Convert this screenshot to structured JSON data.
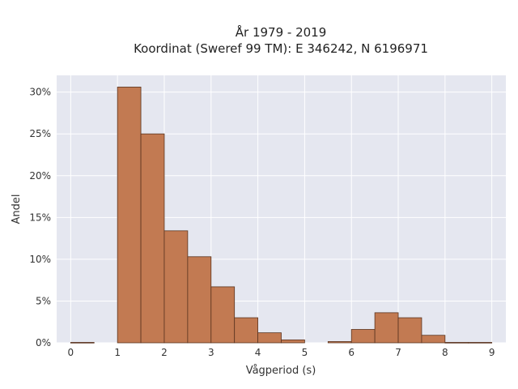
{
  "chart_data": {
    "type": "bar",
    "title": "År 1979 - 2019",
    "subtitle": "Koordinat (Sweref 99 TM): E 346242, N 6196971",
    "xlabel": "Vågperiod (s)",
    "ylabel": "Andel",
    "xlim": [
      -0.3,
      9.3
    ],
    "ylim": [
      0,
      32
    ],
    "x_ticks": [
      0,
      1,
      2,
      3,
      4,
      5,
      6,
      7,
      8,
      9
    ],
    "y_ticks": [
      0,
      5,
      10,
      15,
      20,
      25,
      30
    ],
    "y_tick_labels": [
      "0%",
      "5%",
      "10%",
      "15%",
      "20%",
      "25%",
      "30%"
    ],
    "bin_width": 0.5,
    "bins": [
      {
        "x0": 0.0,
        "value": 0.05
      },
      {
        "x0": 0.5,
        "value": 0.0
      },
      {
        "x0": 1.0,
        "value": 30.6
      },
      {
        "x0": 1.5,
        "value": 25.0
      },
      {
        "x0": 2.0,
        "value": 13.4
      },
      {
        "x0": 2.5,
        "value": 10.3
      },
      {
        "x0": 3.0,
        "value": 6.7
      },
      {
        "x0": 3.5,
        "value": 3.0
      },
      {
        "x0": 4.0,
        "value": 1.2
      },
      {
        "x0": 4.5,
        "value": 0.35
      },
      {
        "x0": 5.0,
        "value": 0.0
      },
      {
        "x0": 5.5,
        "value": 0.15
      },
      {
        "x0": 6.0,
        "value": 1.6
      },
      {
        "x0": 6.5,
        "value": 3.6
      },
      {
        "x0": 7.0,
        "value": 3.0
      },
      {
        "x0": 7.5,
        "value": 0.9
      },
      {
        "x0": 8.0,
        "value": 0.05
      },
      {
        "x0": 8.5,
        "value": 0.05
      }
    ],
    "grid": true,
    "colors": {
      "bar_fill": "#c27a52",
      "bar_stroke": "#5a3420",
      "plot_bg": "#e5e7f0",
      "grid": "#ffffff"
    }
  }
}
